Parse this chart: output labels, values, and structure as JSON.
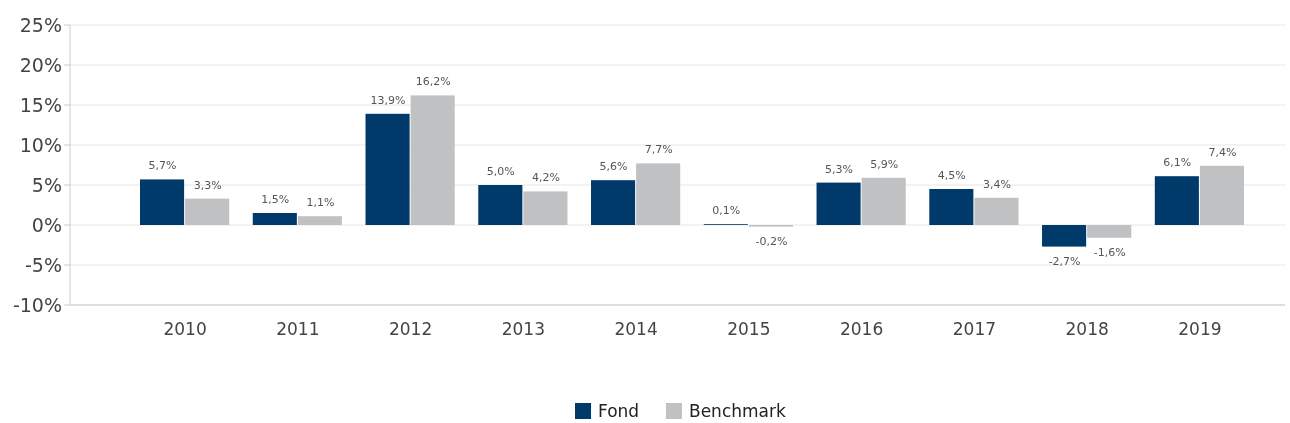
{
  "chart_data": {
    "type": "bar",
    "categories": [
      "2010",
      "2011",
      "2012",
      "2013",
      "2014",
      "2015",
      "2016",
      "2017",
      "2018",
      "2019"
    ],
    "series": [
      {
        "name": "Fond",
        "color": "#003a6b",
        "values": [
          5.7,
          1.5,
          13.9,
          5.0,
          5.6,
          0.1,
          5.3,
          4.5,
          -2.7,
          6.1
        ],
        "value_labels": [
          "5,7%",
          "1,5%",
          "13,9%",
          "5,0%",
          "5,6%",
          "0,1%",
          "5,3%",
          "4,5%",
          "-2,7%",
          "6,1%"
        ]
      },
      {
        "name": "Benchmark",
        "color": "#c0c1c3",
        "values": [
          3.3,
          1.1,
          16.2,
          4.2,
          7.7,
          -0.2,
          5.9,
          3.4,
          -1.6,
          7.4
        ],
        "value_labels": [
          "3,3%",
          "1,1%",
          "16,2%",
          "4,2%",
          "7,7%",
          "-0,2%",
          "5,9%",
          "3,4%",
          "-1,6%",
          "7,4%"
        ]
      }
    ],
    "ylim": [
      -10,
      25
    ],
    "yticks": [
      {
        "value": -10,
        "label": "-10%"
      },
      {
        "value": -5,
        "label": "-5%"
      },
      {
        "value": 0,
        "label": "0%"
      },
      {
        "value": 5,
        "label": "5%"
      },
      {
        "value": 10,
        "label": "10%"
      },
      {
        "value": 15,
        "label": "15%"
      },
      {
        "value": 20,
        "label": "20%"
      },
      {
        "value": 25,
        "label": "25%"
      }
    ],
    "grid": "y",
    "legend": "bottom"
  }
}
